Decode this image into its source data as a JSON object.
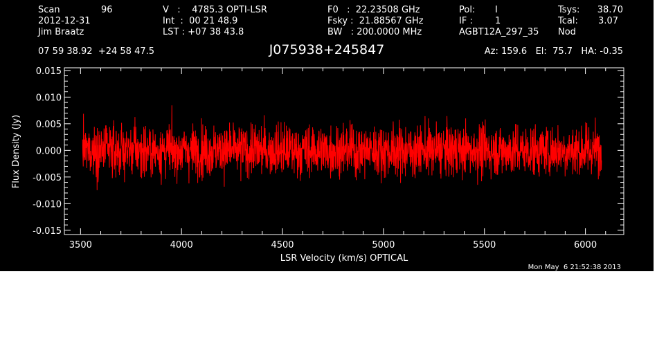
{
  "header": {
    "col1": {
      "scan_label": "Scan",
      "scan_value": "96",
      "date": "2012-12-31",
      "observer": "Jim Braatz",
      "coords": "07 59 38.92  +24 58 47.5"
    },
    "col2": {
      "v_line": "V   :    4785.3 OPTI-LSR",
      "int_line": "Int  :  00 21 48.9",
      "lst_line": "LST : +07 38 43.8"
    },
    "col3": {
      "f0_line": "F0   :  22.23508 GHz",
      "fsky_line": "Fsky :  21.88567 GHz",
      "bw_line": "BW   : 200.0000 MHz"
    },
    "col4": {
      "pol_label": "Pol:",
      "pol_value": "I",
      "if_label": "IF :",
      "if_value": "1",
      "project": "AGBT12A_297_35"
    },
    "col5": {
      "tsys_label": "Tsys:",
      "tsys_value": "38.70",
      "tcal_label": "Tcal:",
      "tcal_value": "3.07",
      "mode": "Nod"
    },
    "source": "J075938+245847",
    "pointing": "Az: 159.6   El:  75.7   HA: -0.35"
  },
  "timestamp": "Mon May  6 21:52:38 2013",
  "colors": {
    "background": "#000000",
    "axes": "#ffffff",
    "series": "#ff0000"
  },
  "chart_data": {
    "type": "line",
    "title": "J075938+245847",
    "xlabel": "LSR Velocity (km/s) OPTICAL",
    "ylabel": "Flux Density (Jy)",
    "xlim": [
      3420,
      6190
    ],
    "ylim": [
      -0.0158,
      0.0155
    ],
    "x_ticks": [
      3500,
      4000,
      4500,
      5000,
      5500,
      6000
    ],
    "x_tick_labels": [
      "3500",
      "4000",
      "4500",
      "5000",
      "5500",
      "6000"
    ],
    "y_ticks": [
      -0.015,
      -0.01,
      -0.005,
      0.0,
      0.005,
      0.01,
      0.015
    ],
    "y_tick_labels": [
      "-0.015",
      "-0.010",
      "-0.005",
      "0.000",
      "0.005",
      "0.010",
      "0.015"
    ],
    "grid": false,
    "series": [
      {
        "color": "#ff0000",
        "x_start": 3510,
        "x_end": 6080,
        "noise_rms": 0.0032,
        "y_min": -0.0115,
        "y_max": 0.0122
      }
    ]
  }
}
